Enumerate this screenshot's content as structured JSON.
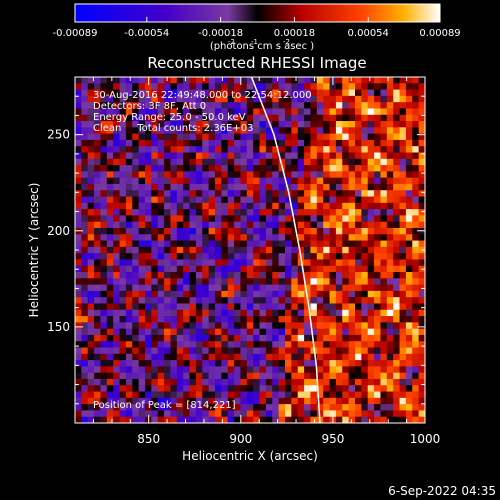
{
  "chart_data": {
    "type": "heatmap",
    "title": "Reconstructed RHESSI Image",
    "xlabel": "Heliocentric X (arcsec)",
    "ylabel": "Heliocentric Y (arcsec)",
    "xlim": [
      810,
      1000
    ],
    "ylim": [
      100,
      280
    ],
    "x_ticks": [
      850,
      900,
      950,
      1000
    ],
    "y_ticks": [
      150,
      200,
      250
    ],
    "colorbar": {
      "range": [
        -0.00089,
        0.00089
      ],
      "tick_values": [
        -0.00089,
        -0.00054,
        -0.00018,
        0.00018,
        0.00054,
        0.00089
      ],
      "tick_labels": [
        "-0.00089",
        "-0.00054",
        "-0.00018",
        "0.00018",
        "0.00054",
        "0.00089"
      ],
      "unit_label": "(photons cm  s  asec )",
      "unit_exponents": [
        "-2",
        "-1",
        "-2"
      ]
    },
    "annotations": [
      "30-Aug-2016 22:49:48.000 to 22:54:12.000",
      "Detectors: 3F 8F, Att 0",
      "Energy Range: 25.0 - 50.0 keV",
      "Clean     Total counts: 2.36E+03"
    ],
    "peak_label": "Position of Peak = [814,221]",
    "peak": [
      814,
      221
    ],
    "limb_curve": [
      [
        905,
        282
      ],
      [
        918,
        250
      ],
      [
        926,
        220
      ],
      [
        932,
        190
      ],
      [
        937,
        160
      ],
      [
        941,
        130
      ],
      [
        943,
        100
      ]
    ],
    "grid": false
  },
  "footer": {
    "timestamp": "6-Sep-2022 04:35"
  }
}
